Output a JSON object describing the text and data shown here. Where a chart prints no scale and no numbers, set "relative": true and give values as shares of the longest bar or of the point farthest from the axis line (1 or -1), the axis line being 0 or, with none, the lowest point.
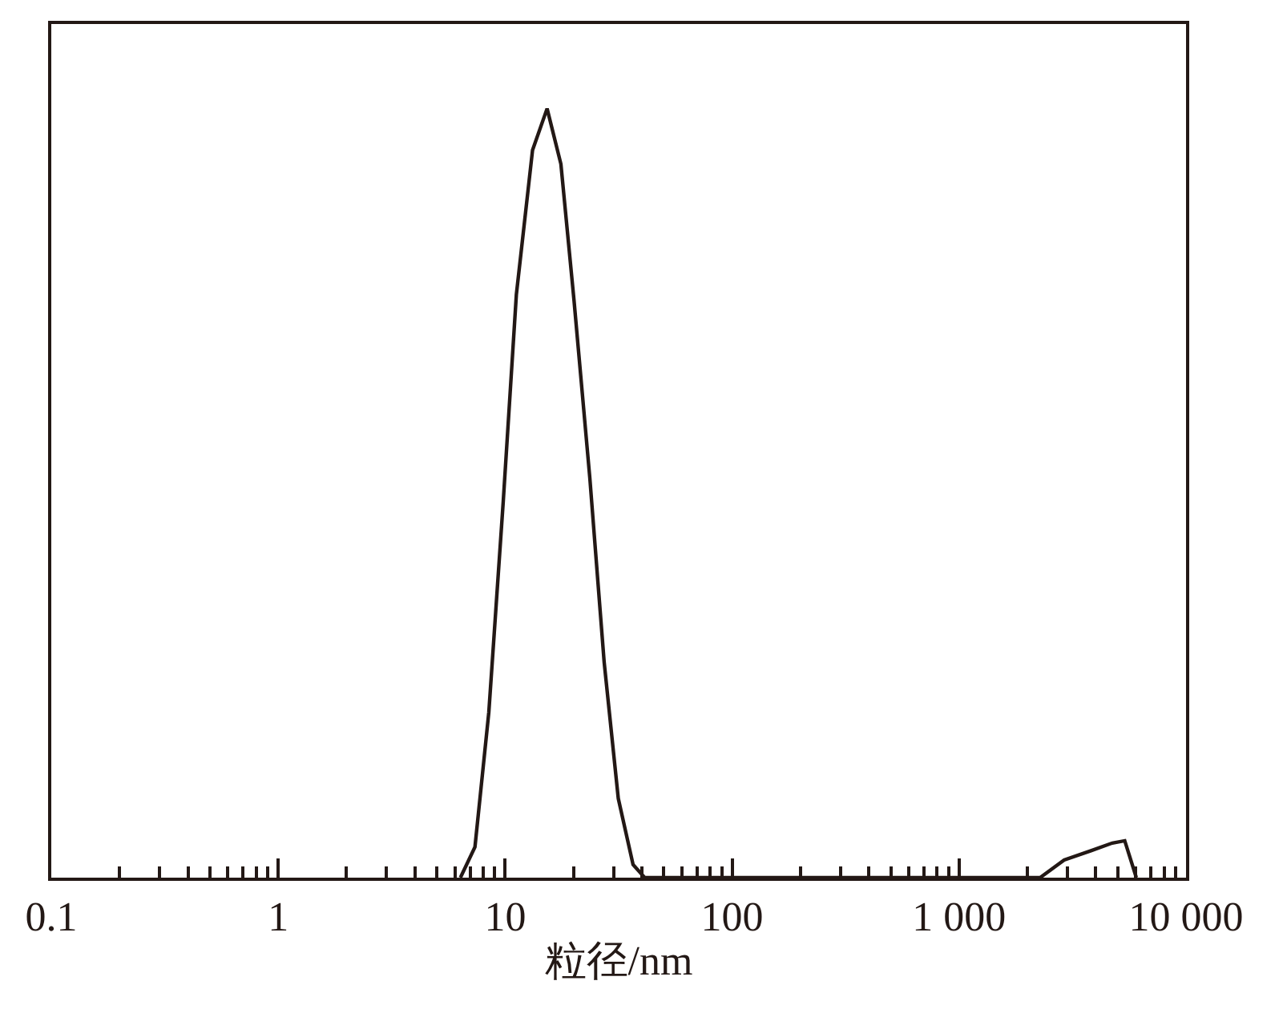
{
  "chart_data": {
    "type": "line",
    "relative": true,
    "xlabel": "粒径/nm",
    "log": "x",
    "xlim": [
      0.1,
      10000
    ],
    "xticks": [
      0.1,
      1,
      10,
      100,
      {
        "value": 1000,
        "label": "1 000"
      },
      {
        "value": 10000,
        "label": "10 000"
      }
    ],
    "x": [
      6.35,
      7.36,
      8.47,
      9.81,
      11.2,
      13.2,
      15.3,
      17.6,
      20.1,
      23.6,
      27.3,
      31.5,
      36.6,
      41.2,
      2275,
      2904,
      3812,
      4732,
      5370,
      6040
    ],
    "series": [
      {
        "color": "#231815",
        "values": [
          0,
          0.04,
          0.215,
          0.49,
          0.758,
          0.946,
          1,
          0.928,
          0.751,
          0.52,
          0.28,
          0.103,
          0.017,
          0,
          0,
          0.023,
          0.035,
          0.045,
          0.048,
          0
        ]
      }
    ],
    "legend": false,
    "marker": "none",
    "line_style": "solid",
    "tick_labels": "x"
  }
}
